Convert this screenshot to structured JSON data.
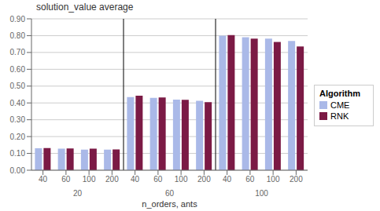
{
  "chart_data": {
    "type": "bar",
    "title": "solution_value average",
    "xlabel": "n_orders, ants",
    "categories": [
      "40",
      "60",
      "100",
      "200",
      "40",
      "60",
      "100",
      "200",
      "40",
      "60",
      "100",
      "200"
    ],
    "groups": [
      "20",
      "60",
      "100"
    ],
    "series": [
      {
        "name": "CME",
        "color": "#aab9e8",
        "values": [
          0.13,
          0.128,
          0.122,
          0.122,
          0.435,
          0.43,
          0.42,
          0.413,
          0.8,
          0.79,
          0.782,
          0.768
        ]
      },
      {
        "name": "RNK",
        "color": "#7b1a45",
        "values": [
          0.132,
          0.129,
          0.128,
          0.124,
          0.443,
          0.432,
          0.418,
          0.405,
          0.803,
          0.782,
          0.762,
          0.736
        ]
      }
    ],
    "ylim": [
      0,
      0.9
    ],
    "yticks": [
      {
        "value": 0,
        "label": "0.00"
      },
      {
        "value": 0.1,
        "label": "0.10"
      },
      {
        "value": 0.2,
        "label": "0.20"
      },
      {
        "value": 0.3,
        "label": "0.30"
      },
      {
        "value": 0.4,
        "label": "0.40"
      },
      {
        "value": 0.5,
        "label": "0.50"
      },
      {
        "value": 0.6,
        "label": "0.60"
      },
      {
        "value": 0.7,
        "label": "0.70"
      },
      {
        "value": 0.8,
        "label": "0.80"
      },
      {
        "value": 0.9,
        "label": "0.90"
      }
    ],
    "grid": true,
    "legend": "right",
    "legend_title": "Algorithm"
  }
}
